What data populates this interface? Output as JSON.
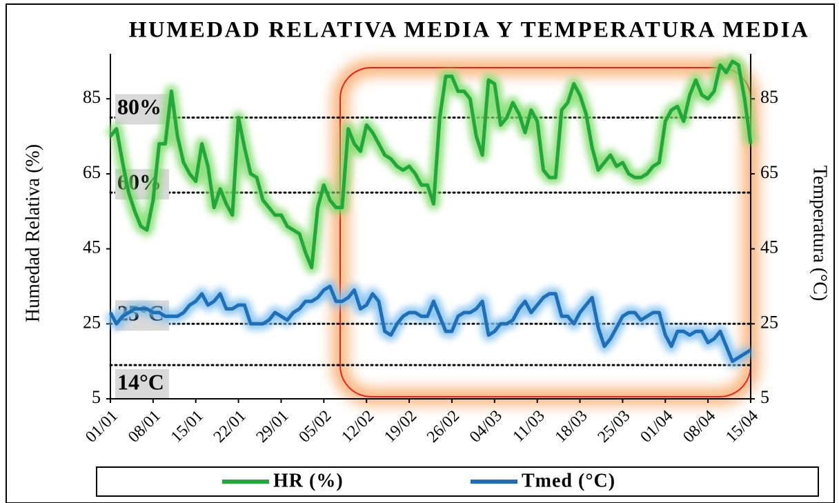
{
  "chart_data": {
    "type": "line",
    "title": "HUMEDAD RELATIVA MEDIA Y TEMPERATURA MEDIA",
    "y_label": "Humedad Relativa (%)",
    "y2_label": "Temperatura (°C)",
    "categories": [
      "01/01",
      null,
      null,
      null,
      null,
      null,
      null,
      "08/01",
      null,
      null,
      null,
      null,
      null,
      null,
      "15/01",
      null,
      null,
      null,
      null,
      null,
      null,
      "22/01",
      null,
      null,
      null,
      null,
      null,
      null,
      "29/01",
      null,
      null,
      null,
      null,
      null,
      null,
      "05/02",
      null,
      null,
      null,
      null,
      null,
      null,
      "12/02",
      null,
      null,
      null,
      null,
      null,
      null,
      "19/02",
      null,
      null,
      null,
      null,
      null,
      null,
      "26/02",
      null,
      null,
      null,
      null,
      null,
      null,
      "04/03",
      null,
      null,
      null,
      null,
      null,
      null,
      "11/03",
      null,
      null,
      null,
      null,
      null,
      null,
      "18/03",
      null,
      null,
      null,
      null,
      null,
      null,
      "25/03",
      null,
      null,
      null,
      null,
      null,
      null,
      "01/04",
      null,
      null,
      null,
      null,
      null,
      null,
      "08/04",
      null,
      null,
      null,
      null,
      null,
      null,
      "15/04"
    ],
    "series": [
      {
        "name": "HR (%)",
        "color": "#22a83a",
        "glow": "#7fdc6a",
        "values": [
          75,
          77,
          68,
          60,
          55,
          51,
          50,
          58,
          73,
          73,
          87,
          75,
          68,
          65,
          63,
          73,
          67,
          56,
          61,
          57,
          54,
          80,
          72,
          65,
          64,
          58,
          56,
          54,
          54,
          51,
          50,
          49,
          44,
          40,
          56,
          62,
          58,
          56,
          56,
          77,
          73,
          71,
          78,
          76,
          73,
          70,
          69,
          67,
          66,
          67,
          65,
          62,
          62,
          57,
          80,
          91,
          91,
          87,
          87,
          85,
          75,
          70,
          90,
          89,
          78,
          80,
          84,
          81,
          76,
          82,
          79,
          66,
          64,
          64,
          82,
          84,
          89,
          86,
          81,
          72,
          66,
          68,
          70,
          67,
          68,
          65,
          64,
          64,
          65,
          67,
          68,
          79,
          82,
          83,
          79,
          86,
          90,
          86,
          85,
          87,
          94,
          92,
          95,
          94,
          85,
          73
        ]
      },
      {
        "name": "Tmed (°C)",
        "color": "#1f6fb8",
        "glow": "#7ec0ef",
        "axis": "y2",
        "values": [
          28,
          25,
          27,
          28,
          29,
          29,
          29,
          28,
          28,
          27,
          27,
          27,
          28,
          30,
          31,
          33,
          30,
          31,
          33,
          29,
          29,
          30,
          30,
          25,
          25,
          25,
          26,
          28,
          27,
          26,
          28,
          29,
          31,
          31,
          32,
          34,
          35,
          31,
          31,
          32,
          34,
          29,
          30,
          33,
          31,
          23,
          22,
          25,
          27,
          28,
          28,
          27,
          27,
          31,
          27,
          23,
          23,
          27,
          28,
          28,
          29,
          31,
          22,
          23,
          25,
          25,
          26,
          29,
          31,
          28,
          30,
          32,
          33,
          33,
          27,
          27,
          25,
          28,
          30,
          32,
          24,
          19,
          21,
          24,
          27,
          28,
          28,
          26,
          27,
          28,
          28,
          22,
          19,
          23,
          23,
          22,
          23,
          23,
          20,
          21,
          23,
          19,
          15,
          16,
          17,
          18
        ]
      }
    ],
    "reference_lines": [
      {
        "value": 80,
        "label": "80%"
      },
      {
        "value": 60,
        "label": "60%"
      },
      {
        "value": 25,
        "label": "25°C"
      },
      {
        "value": 14,
        "label": "14°C"
      }
    ],
    "ylim": [
      5,
      97
    ],
    "yticks": [
      5,
      25,
      45,
      65,
      85
    ],
    "y2lim": [
      5,
      97
    ],
    "y2ticks": [
      5,
      25,
      45,
      65,
      85
    ],
    "grid": false,
    "legend": "bottom"
  }
}
